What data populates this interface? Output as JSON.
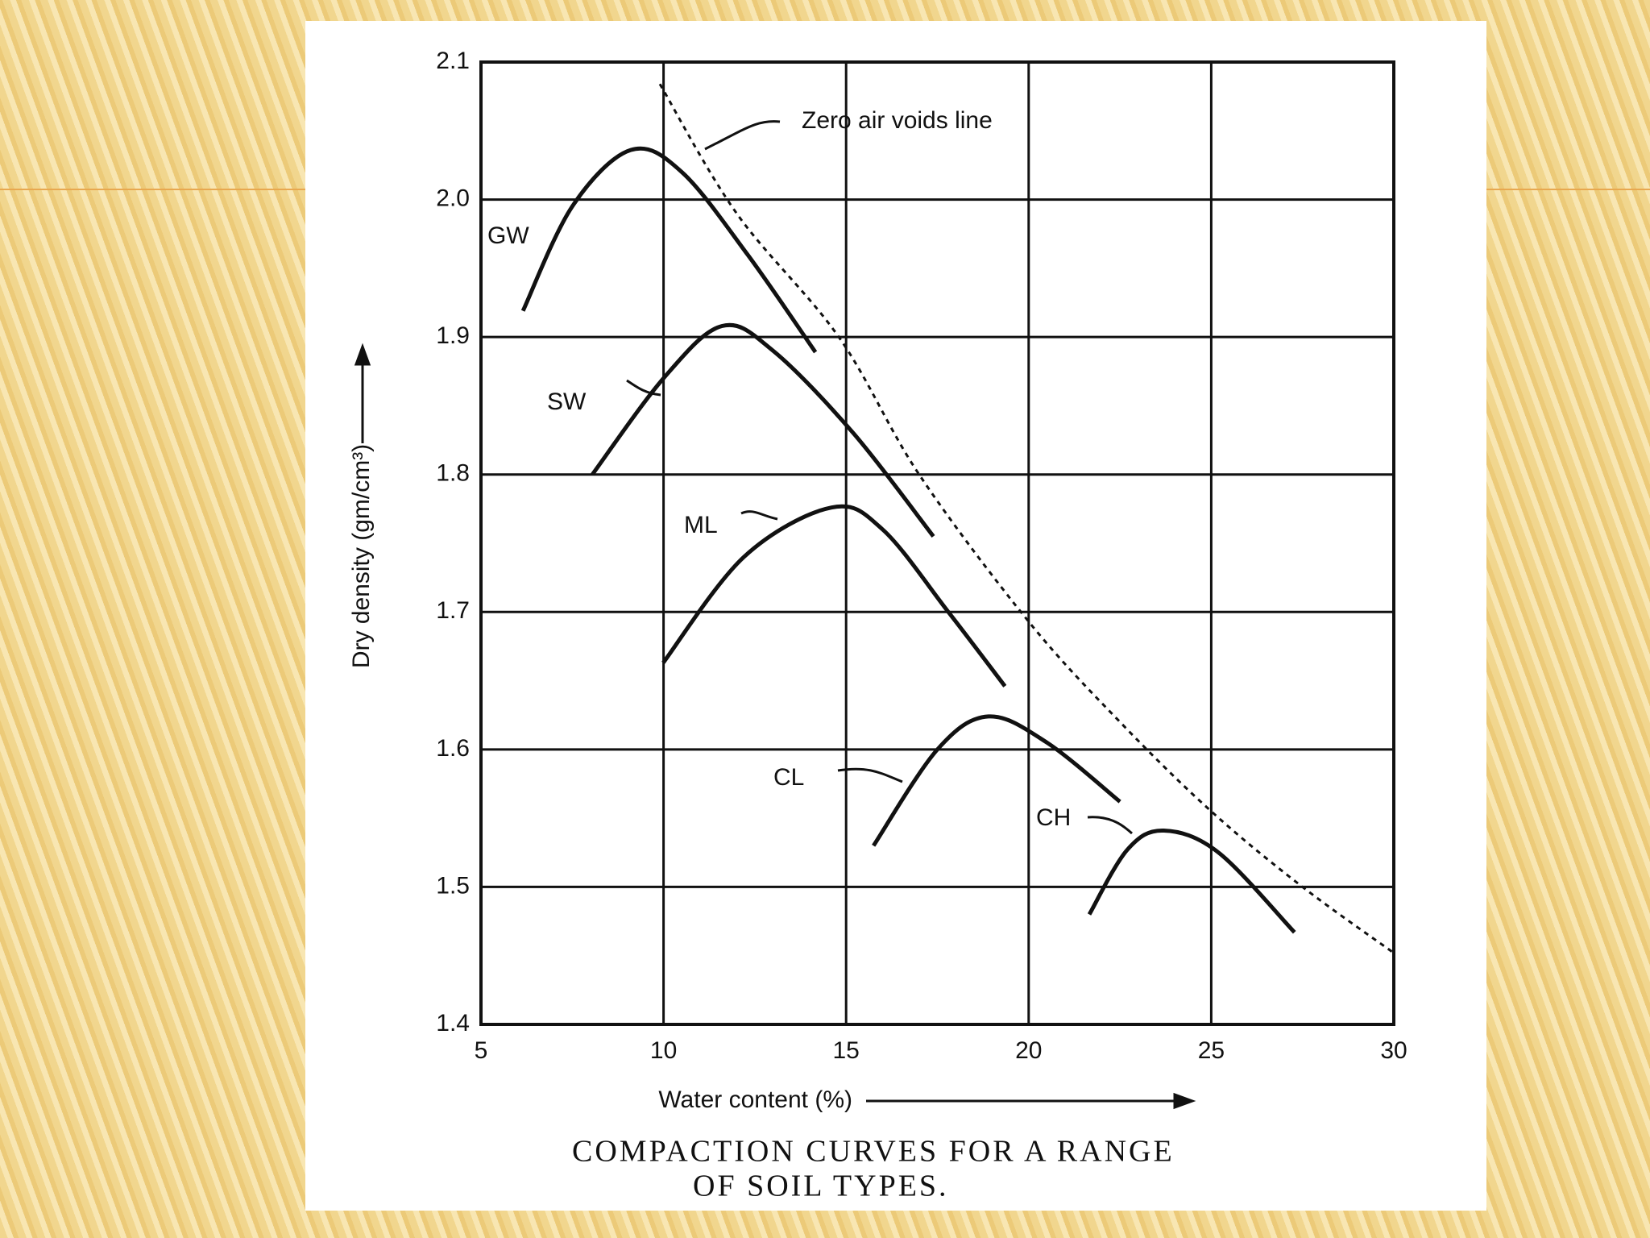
{
  "chart_data": {
    "type": "line",
    "caption": [
      "COMPACTION CURVES FOR A RANGE",
      "OF SOIL TYPES."
    ],
    "x_label": "Water content (%)",
    "y_label": "Dry density (gm/cm³)",
    "annotation": "Zero air voids line",
    "xlim": [
      5,
      30
    ],
    "xticks": [
      5,
      10,
      15,
      20,
      25,
      30
    ],
    "ylim": [
      1.4,
      2.1
    ],
    "yticks": [
      1.4,
      1.5,
      1.6,
      1.7,
      1.8,
      1.9,
      {
        "value": 2,
        "label": "2.0"
      },
      2.1
    ],
    "grid": true,
    "series": [
      {
        "name": "GW",
        "color": "#111111",
        "linestyle": "solid",
        "x": [
          6.15,
          7.5,
          9.1,
          10.5,
          12.3,
          14.16
        ],
        "values": [
          1.919,
          1.995,
          2.036,
          2.02,
          1.96,
          1.889
        ]
      },
      {
        "name": "SW",
        "color": "#111111",
        "linestyle": "solid",
        "x": [
          8.05,
          10,
          11.6,
          13,
          15.2,
          17.39
        ],
        "values": [
          1.8,
          1.87,
          1.908,
          1.89,
          1.83,
          1.755
        ]
      },
      {
        "name": "ML",
        "color": "#111111",
        "linestyle": "solid",
        "x": [
          9.99,
          12.2,
          14.6,
          16,
          17.8,
          19.35
        ],
        "values": [
          1.663,
          1.74,
          1.776,
          1.76,
          1.7,
          1.646
        ]
      },
      {
        "name": "CL",
        "color": "#111111",
        "linestyle": "solid",
        "x": [
          15.75,
          17.5,
          18.9,
          20.5,
          22.5
        ],
        "values": [
          1.53,
          1.6,
          1.624,
          1.605,
          1.562
        ]
      },
      {
        "name": "CH",
        "color": "#111111",
        "linestyle": "solid",
        "x": [
          21.66,
          22.7,
          23.7,
          25.2,
          27.28
        ],
        "values": [
          1.48,
          1.527,
          1.541,
          1.525,
          1.467
        ]
      },
      {
        "name": "Zero air voids line",
        "color": "#111111",
        "linestyle": "dashed",
        "x": [
          9.9,
          12,
          14.8,
          17,
          20,
          22.5,
          25,
          27.5,
          30
        ],
        "values": [
          2.084,
          1.99,
          1.9,
          1.8,
          1.693,
          1.62,
          1.555,
          1.5,
          1.452
        ]
      }
    ]
  }
}
